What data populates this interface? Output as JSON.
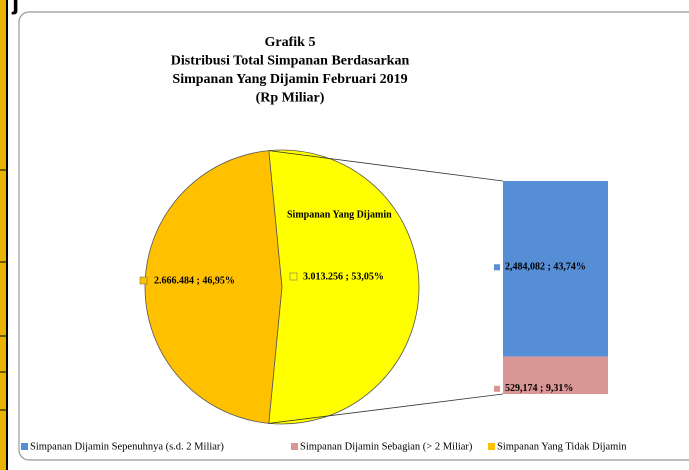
{
  "heading_fragment": "j",
  "chart_data": {
    "type": "pie-of-bar",
    "title_lines": [
      "Grafik 5",
      "Distribusi Total Simpanan Berdasarkan",
      "Simpanan Yang Dijamin Februari 2019",
      "(Rp Miliar)"
    ],
    "pie": {
      "categories": [
        "Simpanan Yang Tidak Dijamin",
        "Simpanan Yang Dijamin"
      ],
      "values": [
        2666484,
        3013256
      ],
      "value_labels": [
        "2.666.484 ; 46,95%",
        "3.013.256 ; 53,05%"
      ],
      "colors": [
        "#FFC000",
        "#FFFF00"
      ]
    },
    "bar": {
      "categories": [
        "Simpanan Dijamin Sepenuhnya (s.d. 2 Miliar)",
        "Simpanan Dijamin Sebagian (> 2 Miliar)"
      ],
      "values": [
        2484082,
        529174
      ],
      "value_labels": [
        "2,484,082 ; 43,74%",
        "529,174 ; 9,31%"
      ],
      "colors": [
        "#558ED5",
        "#D99694"
      ]
    }
  }
}
